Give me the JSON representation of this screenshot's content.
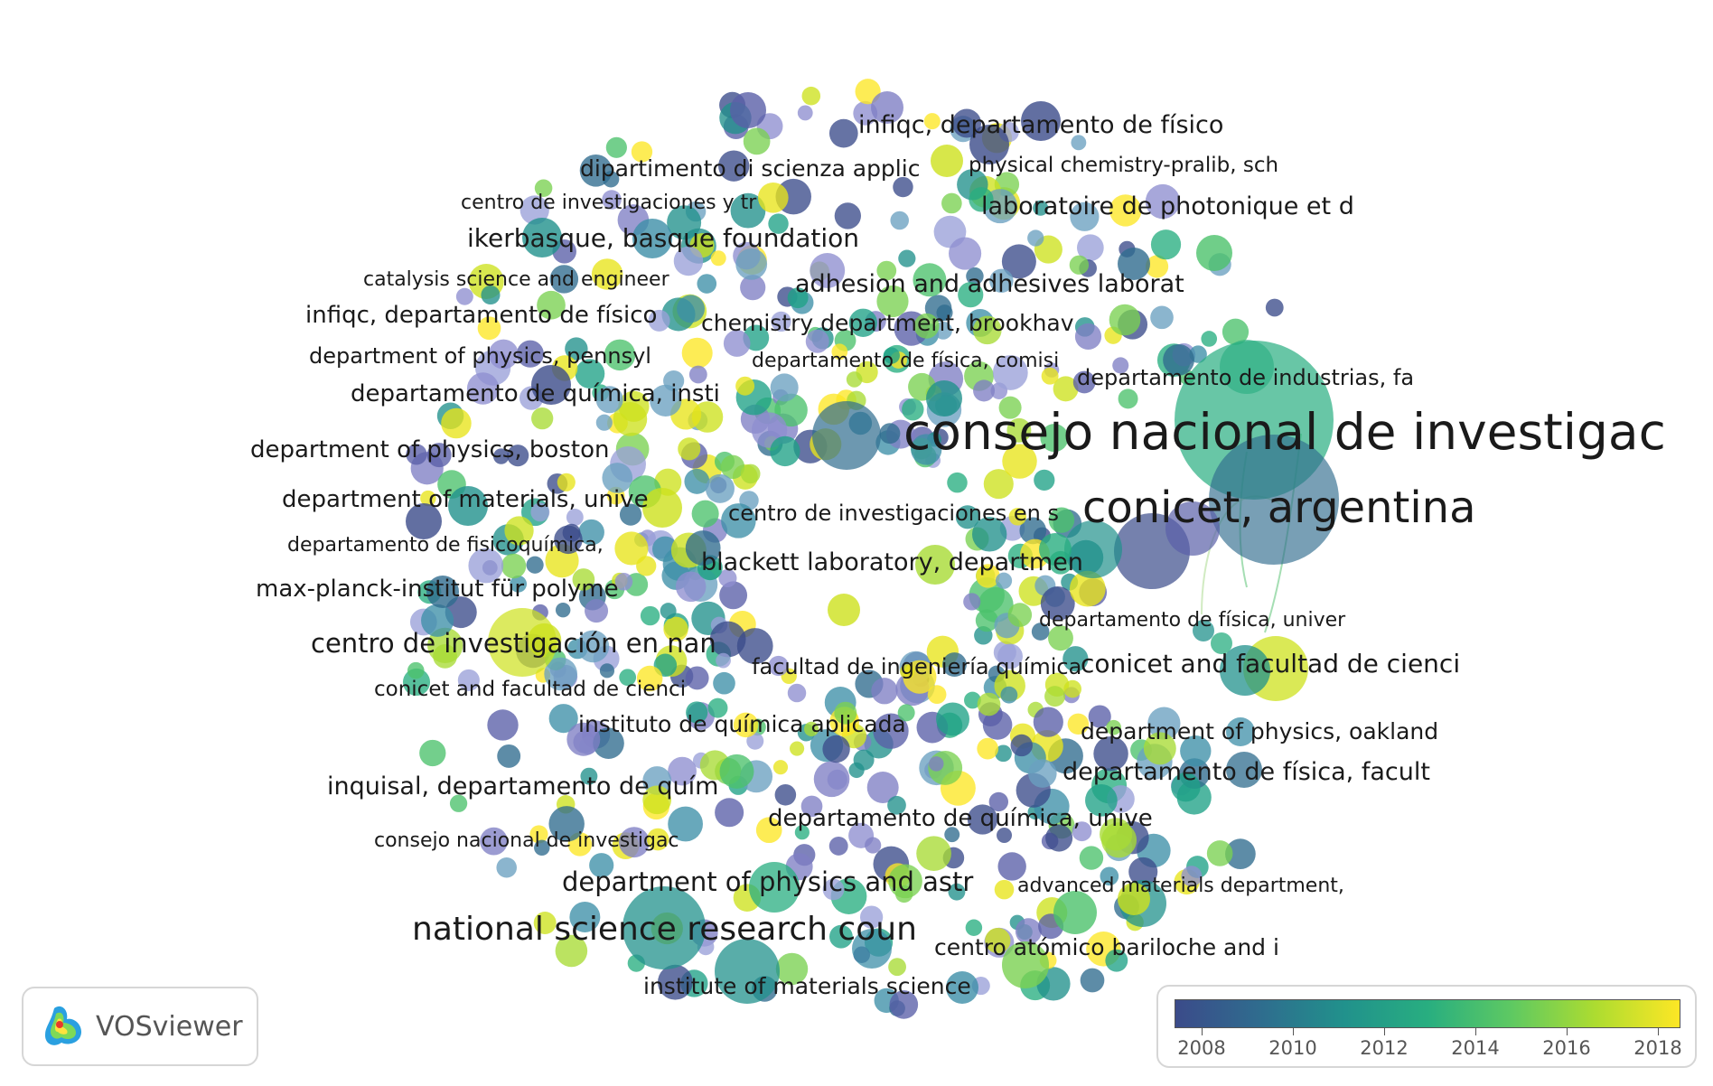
{
  "network": {
    "labels": [
      {
        "text": "infiqc, departamento de físico",
        "fs": 27
      },
      {
        "text": "physical chemistry-pralib, sch",
        "fs": 23
      },
      {
        "text": "dipartimento di scienza applic",
        "fs": 25
      },
      {
        "text": "centro de investigaciones y tr",
        "fs": 22
      },
      {
        "text": "laboratoire de photonique et d",
        "fs": 27
      },
      {
        "text": "ikerbasque, basque foundation",
        "fs": 28
      },
      {
        "text": "catalysis science and engineer",
        "fs": 22
      },
      {
        "text": "adhesion and adhesives laborat",
        "fs": 27
      },
      {
        "text": "infiqc, departamento de físico",
        "fs": 26
      },
      {
        "text": "chemistry department, brookhav",
        "fs": 25
      },
      {
        "text": "department of physics, pennsyl",
        "fs": 24
      },
      {
        "text": "departamento de física, comisi",
        "fs": 22
      },
      {
        "text": "departamento de industrias, fa",
        "fs": 24
      },
      {
        "text": "departamento de química, insti",
        "fs": 26
      },
      {
        "text": "consejo nacional de investigac",
        "fs": 55
      },
      {
        "text": "department of physics, boston",
        "fs": 26
      },
      {
        "text": "conicet, argentina",
        "fs": 48
      },
      {
        "text": "department of materials, unive",
        "fs": 26
      },
      {
        "text": "centro de investigaciones en s",
        "fs": 24
      },
      {
        "text": "departamento de fisicoquímica,",
        "fs": 22
      },
      {
        "text": "blackett laboratory, departmen",
        "fs": 27
      },
      {
        "text": "max-planck-institut für polyme",
        "fs": 26
      },
      {
        "text": "departamento de física, univer",
        "fs": 22
      },
      {
        "text": "centro de investigación en nan",
        "fs": 29
      },
      {
        "text": "facultad de ingeniería química",
        "fs": 24
      },
      {
        "text": "conicet and facultad de cienci",
        "fs": 28
      },
      {
        "text": "conicet and facultad de cienci",
        "fs": 23
      },
      {
        "text": "instituto de química aplicada",
        "fs": 25
      },
      {
        "text": "department of physics, oakland",
        "fs": 25
      },
      {
        "text": "departamento de física, facult",
        "fs": 27
      },
      {
        "text": "inquisal, departamento de quím",
        "fs": 27
      },
      {
        "text": "departamento de química, unive",
        "fs": 26
      },
      {
        "text": "consejo nacional de investigac",
        "fs": 22
      },
      {
        "text": "advanced materials department,",
        "fs": 22
      },
      {
        "text": "department of physics and astr",
        "fs": 29
      },
      {
        "text": "national science research coun",
        "fs": 36
      },
      {
        "text": "centro atómico bariloche and i",
        "fs": 25
      },
      {
        "text": "institute of materials science",
        "fs": 25
      }
    ]
  },
  "logo": {
    "text": "VOSviewer"
  },
  "legend": {
    "ticks": [
      "2008",
      "2010",
      "2012",
      "2014",
      "2016",
      "2018"
    ],
    "colors": [
      "#3b4b8a",
      "#2f6c8e",
      "#21918c",
      "#28ae80",
      "#5ec962",
      "#addc30",
      "#fde725"
    ]
  }
}
